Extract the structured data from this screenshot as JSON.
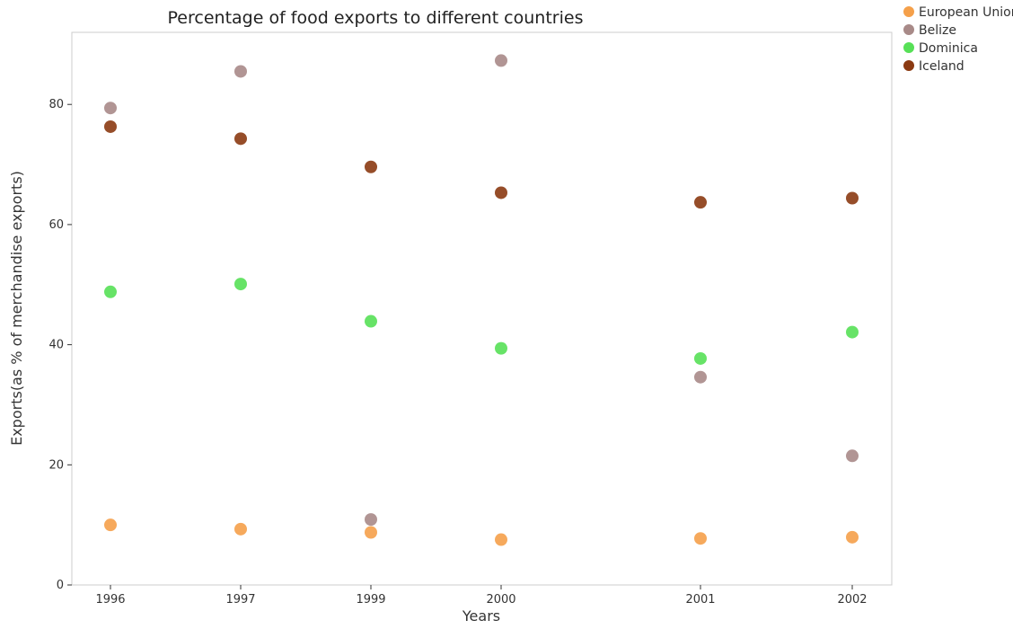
{
  "chart_data": {
    "type": "scatter",
    "title": "Percentage of food exports to different countries",
    "xlabel": "Years",
    "ylabel": "Exports(as % of merchandise exports)",
    "categories": [
      "1996",
      "1997",
      "1999",
      "2000",
      "2001",
      "2002"
    ],
    "ylim": [
      0,
      92
    ],
    "yticks": [
      0,
      20,
      40,
      60,
      80
    ],
    "grid": false,
    "legend_position": "top-right",
    "series": [
      {
        "name": "European Union",
        "color": "#f5a04a",
        "values": [
          10.0,
          9.3,
          8.75,
          7.55,
          7.75,
          7.95
        ]
      },
      {
        "name": "Belize",
        "color": "#a88a88",
        "values": [
          79.4,
          85.5,
          10.9,
          87.3,
          34.6,
          21.5
        ]
      },
      {
        "name": "Dominica",
        "color": "#57e057",
        "values": [
          48.8,
          50.1,
          43.9,
          39.4,
          37.7,
          42.1
        ]
      },
      {
        "name": "Iceland",
        "color": "#8b3a12",
        "values": [
          76.3,
          74.3,
          69.6,
          65.3,
          63.7,
          64.4
        ]
      }
    ]
  }
}
